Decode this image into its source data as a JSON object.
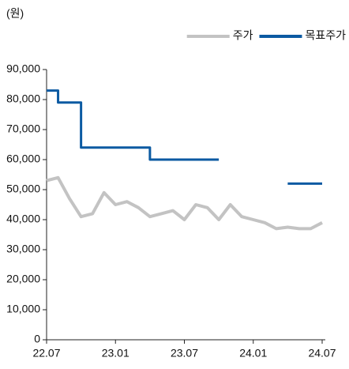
{
  "chart_data": {
    "type": "line",
    "y_unit": "(원)",
    "categories": [
      "22.07",
      null,
      null,
      null,
      null,
      null,
      "23.01",
      null,
      null,
      null,
      null,
      null,
      "23.07",
      null,
      null,
      null,
      null,
      null,
      "24.01",
      null,
      null,
      null,
      null,
      null,
      "24.07"
    ],
    "series": [
      {
        "name": "주가",
        "color": "#c3c3c3",
        "step": false,
        "values": [
          53000,
          54000,
          47000,
          41000,
          42000,
          49000,
          45000,
          46000,
          44000,
          41000,
          42000,
          43000,
          40000,
          45000,
          44000,
          40000,
          45000,
          41000,
          40000,
          39000,
          37000,
          37500,
          37000,
          37000,
          39000
        ]
      },
      {
        "name": "목표주가",
        "color": "#0b5aa2",
        "step": true,
        "values": [
          83000,
          79000,
          79000,
          64000,
          64000,
          64000,
          64000,
          64000,
          64000,
          60000,
          60000,
          60000,
          60000,
          60000,
          60000,
          60000,
          null,
          null,
          null,
          null,
          null,
          52000,
          52000,
          52000,
          52000
        ]
      }
    ],
    "ylim": [
      0,
      90000
    ],
    "yticks": [
      0,
      {
        "value": 10000,
        "label": "10,000"
      },
      {
        "value": 20000,
        "label": "20,000"
      },
      {
        "value": 30000,
        "label": "30,000"
      },
      {
        "value": 40000,
        "label": "40,000"
      },
      {
        "value": 50000,
        "label": "50,000"
      },
      {
        "value": 60000,
        "label": "60,000"
      },
      {
        "value": 70000,
        "label": "70,000"
      },
      {
        "value": 80000,
        "label": "80,000"
      },
      {
        "value": 90000,
        "label": "90,000"
      }
    ],
    "legend": "top-right",
    "grid": false
  }
}
